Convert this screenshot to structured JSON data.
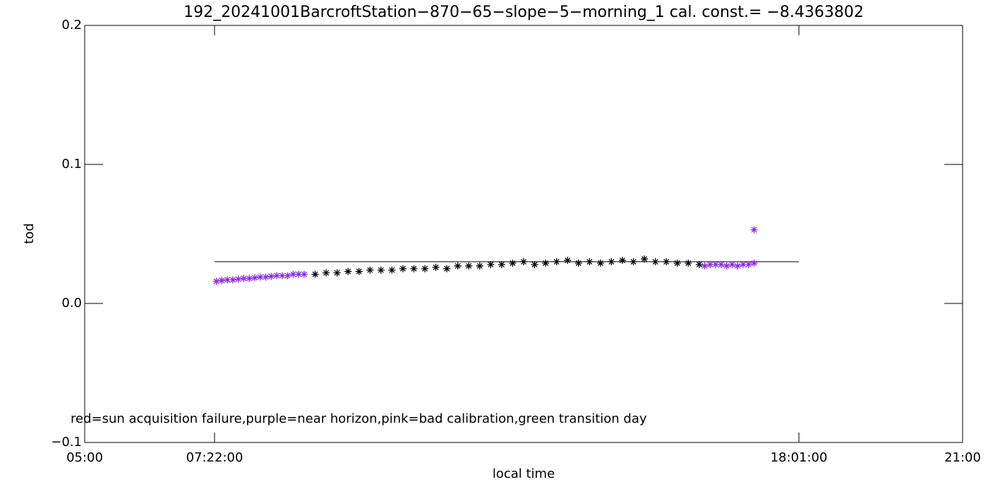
{
  "chart_data": {
    "type": "scatter",
    "title": "192_20241001BarcroftStation−870−65−slope−5−morning_1 cal. const.= −8.4363802",
    "x_label": "local time",
    "y_label": "tod",
    "annotation": "red=sun acquisition failure,purple=near horizon,pink=bad calibration,green transition day",
    "xlim": [
      5,
      21
    ],
    "xticks": [
      {
        "value": 5,
        "label": "05:00"
      },
      {
        "value": 7.36667,
        "label": "07:22:00"
      },
      {
        "value": 18.01667,
        "label": "18:01:00"
      },
      {
        "value": 21,
        "label": "21:00"
      }
    ],
    "ylim": [
      -0.1,
      0.2
    ],
    "yticks": [
      {
        "value": -0.1,
        "label": "−0.1"
      },
      {
        "value": 0,
        "label": "0.0"
      },
      0.1,
      0.2
    ],
    "reference_line": {
      "y": 0.03,
      "x": [
        7.36667,
        18.01667
      ],
      "color": "#000000"
    },
    "series": [
      {
        "color": "#000000",
        "x": [
          9.2,
          9.4,
          9.6,
          9.8,
          10.0,
          10.2,
          10.4,
          10.6,
          10.8,
          11.0,
          11.2,
          11.4,
          11.6,
          11.8,
          12.0,
          12.2,
          12.4,
          12.6,
          12.8,
          13.0,
          13.2,
          13.4,
          13.6,
          13.8,
          14.0,
          14.2,
          14.4,
          14.6,
          14.8,
          15.0,
          15.2,
          15.4,
          15.6,
          15.8,
          16.0,
          16.2
        ],
        "values": [
          0.021,
          0.022,
          0.022,
          0.023,
          0.023,
          0.024,
          0.024,
          0.024,
          0.025,
          0.025,
          0.025,
          0.026,
          0.025,
          0.027,
          0.027,
          0.027,
          0.028,
          0.028,
          0.029,
          0.03,
          0.028,
          0.029,
          0.03,
          0.031,
          0.029,
          0.03,
          0.029,
          0.03,
          0.031,
          0.03,
          0.032,
          0.03,
          0.03,
          0.029,
          0.029,
          0.028
        ]
      },
      {
        "color": "#8a2be2",
        "x": [
          7.4,
          7.5,
          7.6,
          7.7,
          7.8,
          7.9,
          8.0,
          8.1,
          8.2,
          8.3,
          8.4,
          8.5,
          8.6,
          8.7,
          8.8,
          8.9,
          9.0,
          16.3,
          16.4,
          16.5,
          16.6,
          16.7,
          16.8,
          16.9,
          17.0,
          17.1,
          17.2,
          17.2
        ],
        "values": [
          0.016,
          0.0165,
          0.017,
          0.017,
          0.0175,
          0.018,
          0.018,
          0.0185,
          0.019,
          0.019,
          0.0195,
          0.02,
          0.02,
          0.02,
          0.021,
          0.021,
          0.021,
          0.027,
          0.028,
          0.028,
          0.028,
          0.027,
          0.028,
          0.027,
          0.028,
          0.028,
          0.029,
          0.053
        ]
      }
    ]
  }
}
